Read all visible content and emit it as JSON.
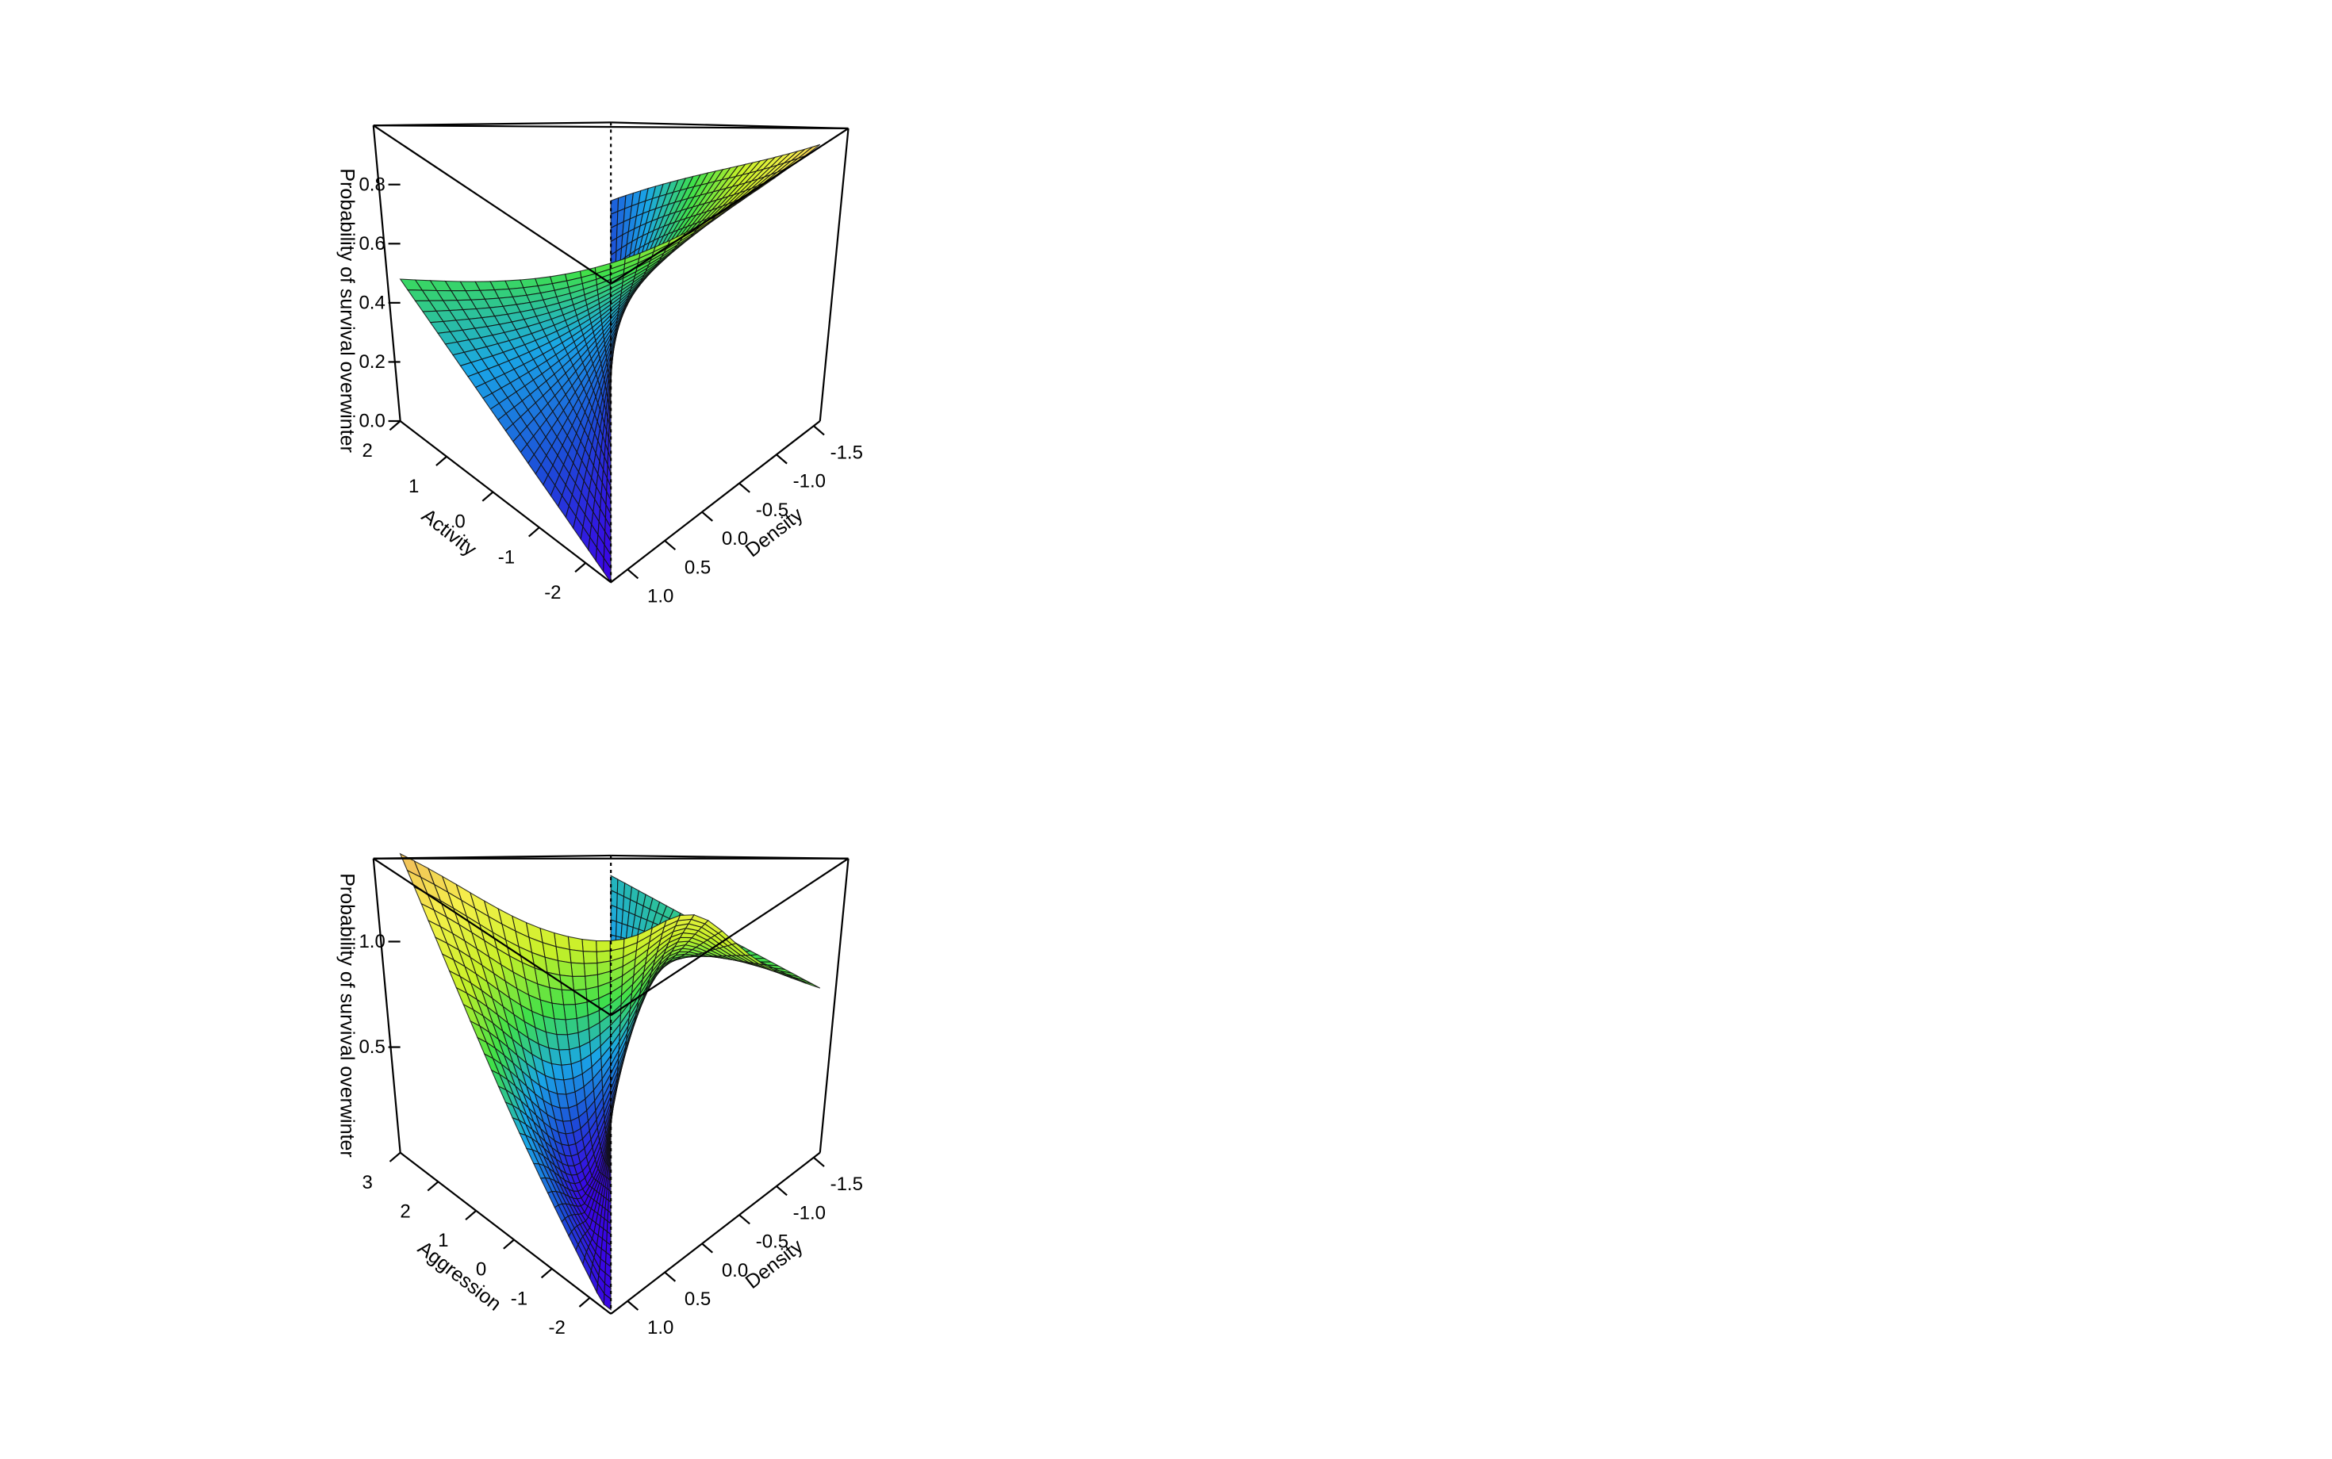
{
  "chart_data": [
    {
      "type": "surface",
      "title": "",
      "xlabel": "Activity",
      "ylabel": "Density",
      "zlabel": "Probability of survival overwinter",
      "x_ticks": [
        "2",
        "1",
        "0",
        "-1",
        "-2"
      ],
      "y_ticks": [
        "-1.5",
        "-1.0",
        "-0.5",
        "0.0",
        "0.5",
        "1.0"
      ],
      "z_ticks": [
        "0.0",
        "0.2",
        "0.4",
        "0.6",
        "0.8"
      ],
      "xlim": [
        -2,
        2
      ],
      "ylim": [
        -1.5,
        1.0
      ],
      "zlim": [
        0.0,
        1.0
      ],
      "corner_values": [
        {
          "x": 2,
          "y": 1.0,
          "z": 0.43
        },
        {
          "x": -2,
          "y": 1.0,
          "z": 0.0
        },
        {
          "x": -2,
          "y": -1.5,
          "z": 1.0
        },
        {
          "x": 2,
          "y": -1.5,
          "z": 0.2
        }
      ],
      "colormap": [
        "#3c00e6",
        "#1d4bd8",
        "#1aa6e6",
        "#3fe04a",
        "#c8f028",
        "#f5f04a",
        "#f0b060"
      ]
    },
    {
      "type": "surface",
      "title": "",
      "xlabel": "Aggression",
      "ylabel": "Density",
      "zlabel": "Probability of survival overwinter",
      "x_ticks": [
        "3",
        "2",
        "1",
        "0",
        "-1",
        "-2"
      ],
      "y_ticks": [
        "-1.5",
        "-1.0",
        "-0.5",
        "0.0",
        "0.5",
        "1.0"
      ],
      "z_ticks": [
        "0.5",
        "1.0"
      ],
      "xlim": [
        -2,
        3
      ],
      "ylim": [
        -1.5,
        1.0
      ],
      "zlim": [
        0.0,
        1.45
      ],
      "corner_values": [
        {
          "x": 3,
          "y": 1.0,
          "z": 1.45
        },
        {
          "x": -2,
          "y": 1.0,
          "z": 0.02
        },
        {
          "x": -2,
          "y": -1.5,
          "z": 0.78
        },
        {
          "x": 3,
          "y": -1.5,
          "z": 0.55
        }
      ],
      "colormap": [
        "#3c00e6",
        "#1d4bd8",
        "#1aa6e6",
        "#3fe04a",
        "#c8f028",
        "#f5f04a",
        "#f0b060"
      ]
    }
  ]
}
